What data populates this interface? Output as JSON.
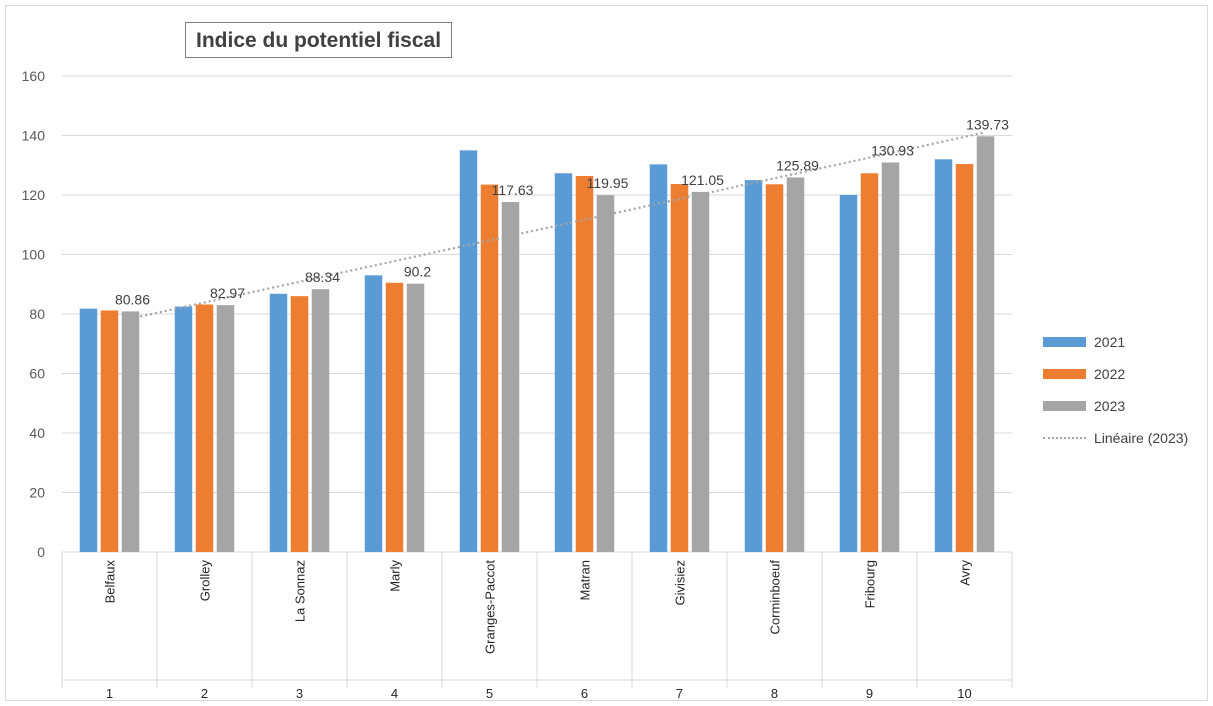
{
  "chart_data": {
    "type": "bar",
    "title": "Indice du potentiel fiscal",
    "ylim": [
      0,
      160
    ],
    "yticks": [
      0,
      20,
      40,
      60,
      80,
      100,
      120,
      140,
      160
    ],
    "grid": true,
    "legend_position": "right",
    "categories": [
      "Belfaux",
      "Grolley",
      "La Sonnaz",
      "Marly",
      "Granges-Paccot",
      "Matran",
      "Givisiez",
      "Corminboeuf",
      "Fribourg",
      "Avry"
    ],
    "category_numbers": [
      "1",
      "2",
      "3",
      "4",
      "5",
      "6",
      "7",
      "8",
      "9",
      "10"
    ],
    "series": [
      {
        "name": "2021",
        "color": "#5b9bd5",
        "values": [
          81.8,
          82.5,
          86.8,
          93,
          135,
          127.3,
          130.3,
          125,
          120,
          132
        ]
      },
      {
        "name": "2022",
        "color": "#ed7d31",
        "values": [
          81.2,
          83.2,
          86,
          90.5,
          123.5,
          126.4,
          123.7,
          123.6,
          127.3,
          130.4
        ]
      },
      {
        "name": "2023",
        "color": "#a5a5a5",
        "values": [
          80.86,
          82.97,
          88.34,
          90.2,
          117.63,
          119.95,
          121.05,
          125.89,
          130.93,
          139.73
        ]
      }
    ],
    "data_labels": [
      "80.86",
      "82.97",
      "88.34",
      "90.2",
      "117.63",
      "119.95",
      "121.05",
      "125.89",
      "130.93",
      "139.73"
    ],
    "trendline": {
      "name": "Linéaire (2023)",
      "series": "2023",
      "color": "#a5a5a5",
      "style": "dotted"
    }
  }
}
